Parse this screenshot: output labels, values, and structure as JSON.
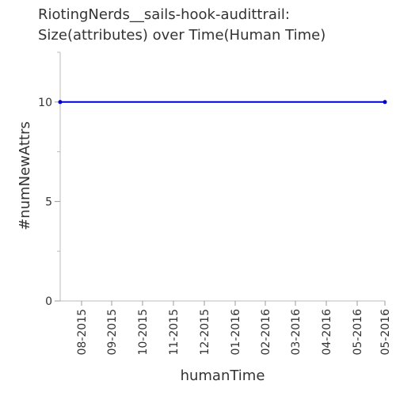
{
  "chart_data": {
    "type": "line",
    "title_lines": [
      "RiotingNerds__sails-hook-audittrail:",
      "Size(attributes) over Time(Human Time)"
    ],
    "xlabel": "humanTime",
    "ylabel": "#numNewAttrs",
    "x_tick_labels": [
      "08-2015",
      "09-2015",
      "10-2015",
      "11-2015",
      "12-2015",
      "01-2016",
      "02-2016",
      "03-2016",
      "04-2016",
      "05-2016",
      "05-2016"
    ],
    "y_tick_labels": [
      "0",
      "5",
      "10"
    ],
    "y_tick_values": [
      0,
      5,
      10
    ],
    "ylim": [
      0,
      12.5
    ],
    "series": [
      {
        "x": [
          "2015-07-01",
          "2016-05-31"
        ],
        "y": [
          10,
          10
        ],
        "color": "#0000cc"
      }
    ],
    "grid": false,
    "legend": "none"
  }
}
